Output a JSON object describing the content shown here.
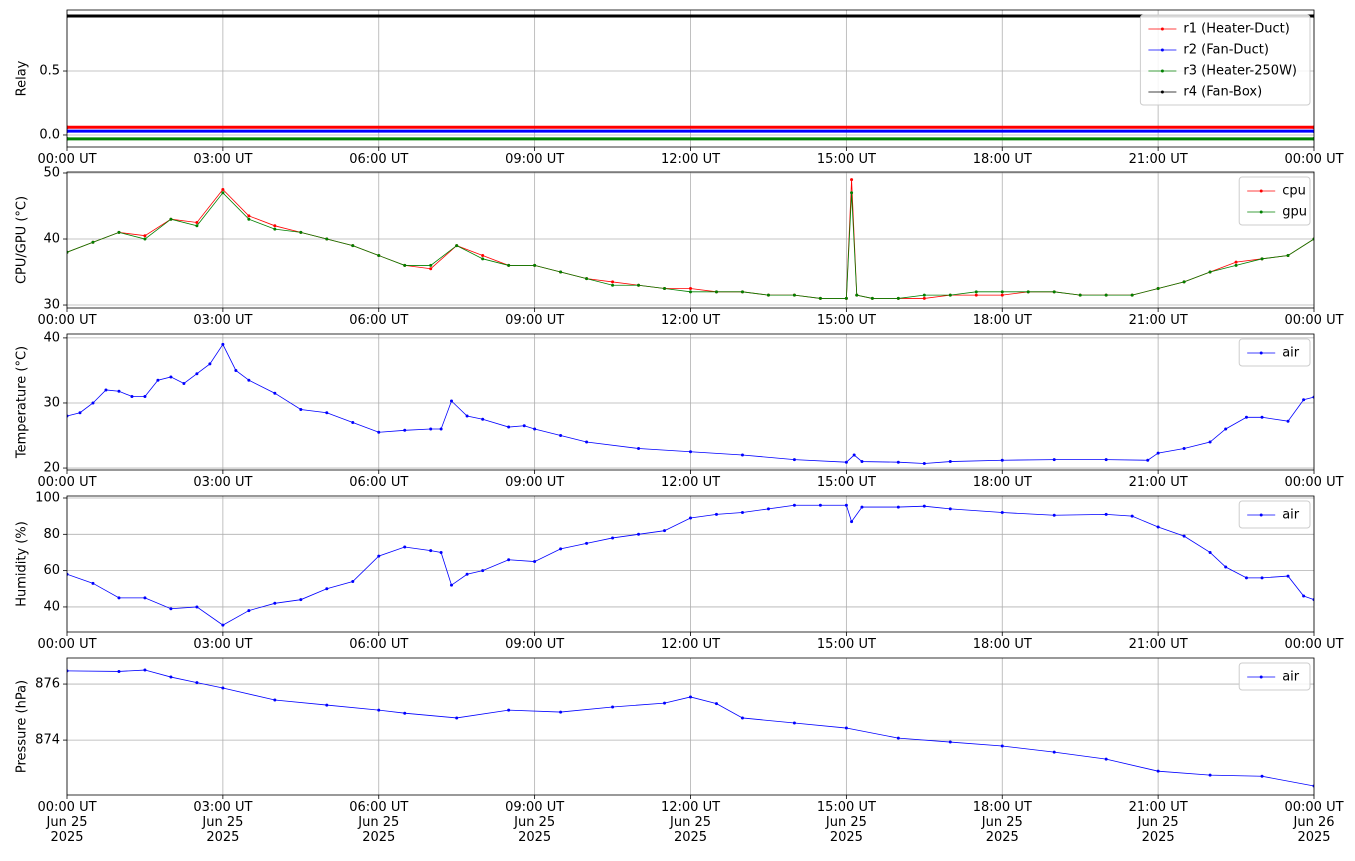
{
  "chart_data": [
    {
      "type": "line",
      "ylabel": "Relay",
      "x": [
        0,
        24
      ],
      "series": [
        {
          "name": "r1 (Heater-Duct)",
          "color": "#ff0000",
          "values": [
            0.06,
            0.06
          ]
        },
        {
          "name": "r2 (Fan-Duct)",
          "color": "#0000ff",
          "values": [
            0.03,
            0.03
          ]
        },
        {
          "name": "r3 (Heater-250W)",
          "color": "#008000",
          "values": [
            -0.03,
            -0.03
          ]
        },
        {
          "name": "r4 (Fan-Box)",
          "color": "#000000",
          "values": [
            0.93,
            0.93
          ]
        }
      ],
      "xlim": [
        0,
        24
      ],
      "xticks": [
        {
          "value": 0,
          "label": "00:00 UT"
        },
        {
          "value": 3,
          "label": "03:00 UT"
        },
        {
          "value": 6,
          "label": "06:00 UT"
        },
        {
          "value": 9,
          "label": "09:00 UT"
        },
        {
          "value": 12,
          "label": "12:00 UT"
        },
        {
          "value": 15,
          "label": "15:00 UT"
        },
        {
          "value": 18,
          "label": "18:00 UT"
        },
        {
          "value": 21,
          "label": "21:00 UT"
        },
        {
          "value": 24,
          "label": "00:00 UT"
        }
      ],
      "ylim": [
        -0.094,
        0.977
      ],
      "yticks": [
        {
          "value": 0,
          "label": "0.0"
        },
        0.5
      ],
      "grid": true,
      "legend": "upper right"
    },
    {
      "type": "line",
      "ylabel": "CPU/GPU (°C)",
      "x": [
        0,
        0.5,
        1,
        1.5,
        2,
        2.5,
        3,
        3.5,
        4,
        4.5,
        5,
        5.5,
        6,
        6.5,
        7,
        7.5,
        8,
        8.5,
        9,
        9.5,
        10,
        10.5,
        11,
        11.5,
        12,
        12.5,
        13,
        13.5,
        14,
        14.5,
        15,
        15.1,
        15.2,
        15.5,
        16,
        16.5,
        17,
        17.5,
        18,
        18.5,
        19,
        19.5,
        20,
        20.5,
        21,
        21.5,
        22,
        22.5,
        23,
        23.5,
        24
      ],
      "series": [
        {
          "name": "cpu",
          "color": "#ff0000",
          "values": [
            38,
            39.5,
            41,
            40.5,
            43,
            42.5,
            47.5,
            43.5,
            42,
            41,
            40,
            39,
            37.5,
            36,
            35.5,
            39,
            37.5,
            36,
            36,
            35,
            34,
            33.5,
            33,
            32.5,
            32.5,
            32,
            32,
            31.5,
            31.5,
            31,
            31,
            49,
            31.5,
            31,
            31,
            31,
            31.5,
            31.5,
            31.5,
            32,
            32,
            31.5,
            31.5,
            31.5,
            32.5,
            33.5,
            35,
            36.5,
            37,
            37.5,
            40
          ]
        },
        {
          "name": "gpu",
          "color": "#008000",
          "values": [
            38,
            39.5,
            41,
            40,
            43,
            42,
            47,
            43,
            41.5,
            41,
            40,
            39,
            37.5,
            36,
            36,
            39,
            37,
            36,
            36,
            35,
            34,
            33,
            33,
            32.5,
            32,
            32,
            32,
            31.5,
            31.5,
            31,
            31,
            47,
            31.5,
            31,
            31,
            31.5,
            31.5,
            32,
            32,
            32,
            32,
            31.5,
            31.5,
            31.5,
            32.5,
            33.5,
            35,
            36,
            37,
            37.5,
            40
          ]
        }
      ],
      "xlim": [
        0,
        24
      ],
      "xticks": [
        {
          "value": 0,
          "label": "00:00 UT"
        },
        {
          "value": 3,
          "label": "03:00 UT"
        },
        {
          "value": 6,
          "label": "06:00 UT"
        },
        {
          "value": 9,
          "label": "09:00 UT"
        },
        {
          "value": 12,
          "label": "12:00 UT"
        },
        {
          "value": 15,
          "label": "15:00 UT"
        },
        {
          "value": 18,
          "label": "18:00 UT"
        },
        {
          "value": 21,
          "label": "21:00 UT"
        },
        {
          "value": 24,
          "label": "00:00 UT"
        }
      ],
      "ylim": [
        29.55,
        50.15
      ],
      "yticks": [
        30,
        40,
        50
      ],
      "grid": true,
      "legend": "upper right"
    },
    {
      "type": "line",
      "ylabel": "Temperature (°C)",
      "x": [
        0,
        0.25,
        0.5,
        0.75,
        1,
        1.25,
        1.5,
        1.75,
        2,
        2.25,
        2.5,
        2.75,
        3,
        3.25,
        3.5,
        4,
        4.5,
        5,
        5.5,
        6,
        6.5,
        7,
        7.2,
        7.4,
        7.7,
        8,
        8.5,
        8.8,
        9,
        9.5,
        10,
        11,
        12,
        13,
        14,
        15,
        15.15,
        15.3,
        16,
        16.5,
        17,
        18,
        19,
        20,
        20.8,
        21,
        21.5,
        22,
        22.3,
        22.7,
        23,
        23.5,
        23.8,
        24
      ],
      "series": [
        {
          "name": "air",
          "color": "#0000ff",
          "values": [
            28,
            28.5,
            30,
            32,
            31.8,
            31,
            31,
            33.5,
            34,
            33,
            34.5,
            36,
            39,
            35,
            33.5,
            31.5,
            29,
            28.5,
            27,
            25.5,
            25.8,
            26,
            26,
            30.3,
            28,
            27.5,
            26.3,
            26.5,
            26,
            25,
            24,
            23,
            22.5,
            22,
            21.3,
            20.9,
            22,
            21,
            20.9,
            20.7,
            21,
            21.2,
            21.3,
            21.3,
            21.2,
            22.3,
            23,
            24,
            26,
            27.8,
            27.8,
            27.2,
            30.5,
            30.9
          ]
        }
      ],
      "xlim": [
        0,
        24
      ],
      "xticks": [
        {
          "value": 0,
          "label": "00:00 UT"
        },
        {
          "value": 3,
          "label": "03:00 UT"
        },
        {
          "value": 6,
          "label": "06:00 UT"
        },
        {
          "value": 9,
          "label": "09:00 UT"
        },
        {
          "value": 12,
          "label": "12:00 UT"
        },
        {
          "value": 15,
          "label": "15:00 UT"
        },
        {
          "value": 18,
          "label": "18:00 UT"
        },
        {
          "value": 21,
          "label": "21:00 UT"
        },
        {
          "value": 24,
          "label": "00:00 UT"
        }
      ],
      "ylim": [
        19.7,
        40.6
      ],
      "yticks": [
        20,
        30,
        40
      ],
      "grid": true,
      "legend": "upper right"
    },
    {
      "type": "line",
      "ylabel": "Humidity (%)",
      "x": [
        0,
        0.5,
        1,
        1.5,
        2,
        2.5,
        3,
        3.5,
        4,
        4.5,
        5,
        5.5,
        6,
        6.5,
        7,
        7.2,
        7.4,
        7.7,
        8,
        8.5,
        9,
        9.5,
        10,
        10.5,
        11,
        11.5,
        12,
        12.5,
        13,
        13.5,
        14,
        14.5,
        15,
        15.1,
        15.3,
        16,
        16.5,
        17,
        18,
        19,
        20,
        20.5,
        21,
        21.5,
        22,
        22.3,
        22.7,
        23,
        23.5,
        23.8,
        24
      ],
      "series": [
        {
          "name": "air",
          "color": "#0000ff",
          "values": [
            58,
            53,
            45,
            45,
            39,
            40,
            30,
            38,
            42,
            44,
            50,
            54,
            68,
            73,
            71,
            70,
            52,
            58,
            60,
            66,
            65,
            72,
            75,
            78,
            80,
            82,
            89,
            91,
            92,
            94,
            96,
            96,
            96,
            87,
            95,
            95,
            95.5,
            94,
            92,
            90.5,
            91,
            90,
            84,
            79,
            70,
            62,
            56,
            56,
            57,
            46,
            44
          ]
        }
      ],
      "xlim": [
        0,
        24
      ],
      "xticks": [
        {
          "value": 0,
          "label": "00:00 UT"
        },
        {
          "value": 3,
          "label": "03:00 UT"
        },
        {
          "value": 6,
          "label": "06:00 UT"
        },
        {
          "value": 9,
          "label": "09:00 UT"
        },
        {
          "value": 12,
          "label": "12:00 UT"
        },
        {
          "value": 15,
          "label": "15:00 UT"
        },
        {
          "value": 18,
          "label": "18:00 UT"
        },
        {
          "value": 21,
          "label": "21:00 UT"
        },
        {
          "value": 24,
          "label": "00:00 UT"
        }
      ],
      "ylim": [
        26.2,
        101.1
      ],
      "yticks": [
        40,
        60,
        80,
        100
      ],
      "grid": true,
      "legend": "upper right"
    },
    {
      "type": "line",
      "ylabel": "Pressure (hPa)",
      "x": [
        0,
        1,
        1.5,
        2,
        2.5,
        3,
        4,
        5,
        6,
        6.5,
        7.5,
        8.5,
        9.5,
        10.5,
        11.5,
        12,
        12.5,
        13,
        14,
        15,
        16,
        17,
        18,
        19,
        20,
        21,
        22,
        23,
        24
      ],
      "series": [
        {
          "name": "air",
          "color": "#0000ff",
          "values": [
            876.47,
            876.45,
            876.5,
            876.25,
            876.05,
            875.86,
            875.43,
            875.25,
            875.07,
            874.96,
            874.79,
            875.07,
            875.0,
            875.18,
            875.32,
            875.54,
            875.3,
            874.79,
            874.61,
            874.43,
            874.07,
            873.93,
            873.79,
            873.57,
            873.32,
            872.89,
            872.75,
            872.71,
            872.36
          ]
        }
      ],
      "xlim": [
        0,
        24
      ],
      "xticks": [
        {
          "value": 0,
          "label": "00:00 UT\nJun 25\n2025"
        },
        {
          "value": 3,
          "label": "03:00 UT\nJun 25\n2025"
        },
        {
          "value": 6,
          "label": "06:00 UT\nJun 25\n2025"
        },
        {
          "value": 9,
          "label": "09:00 UT\nJun 25\n2025"
        },
        {
          "value": 12,
          "label": "12:00 UT\nJun 25\n2025"
        },
        {
          "value": 15,
          "label": "15:00 UT\nJun 25\n2025"
        },
        {
          "value": 18,
          "label": "18:00 UT\nJun 25\n2025"
        },
        {
          "value": 21,
          "label": "21:00 UT\nJun 25\n2025"
        },
        {
          "value": 24,
          "label": "00:00 UT\nJun 26\n2025"
        }
      ],
      "ylim": [
        872.04,
        876.93
      ],
      "yticks": [
        874,
        876
      ],
      "grid": true,
      "legend": "upper right"
    }
  ]
}
